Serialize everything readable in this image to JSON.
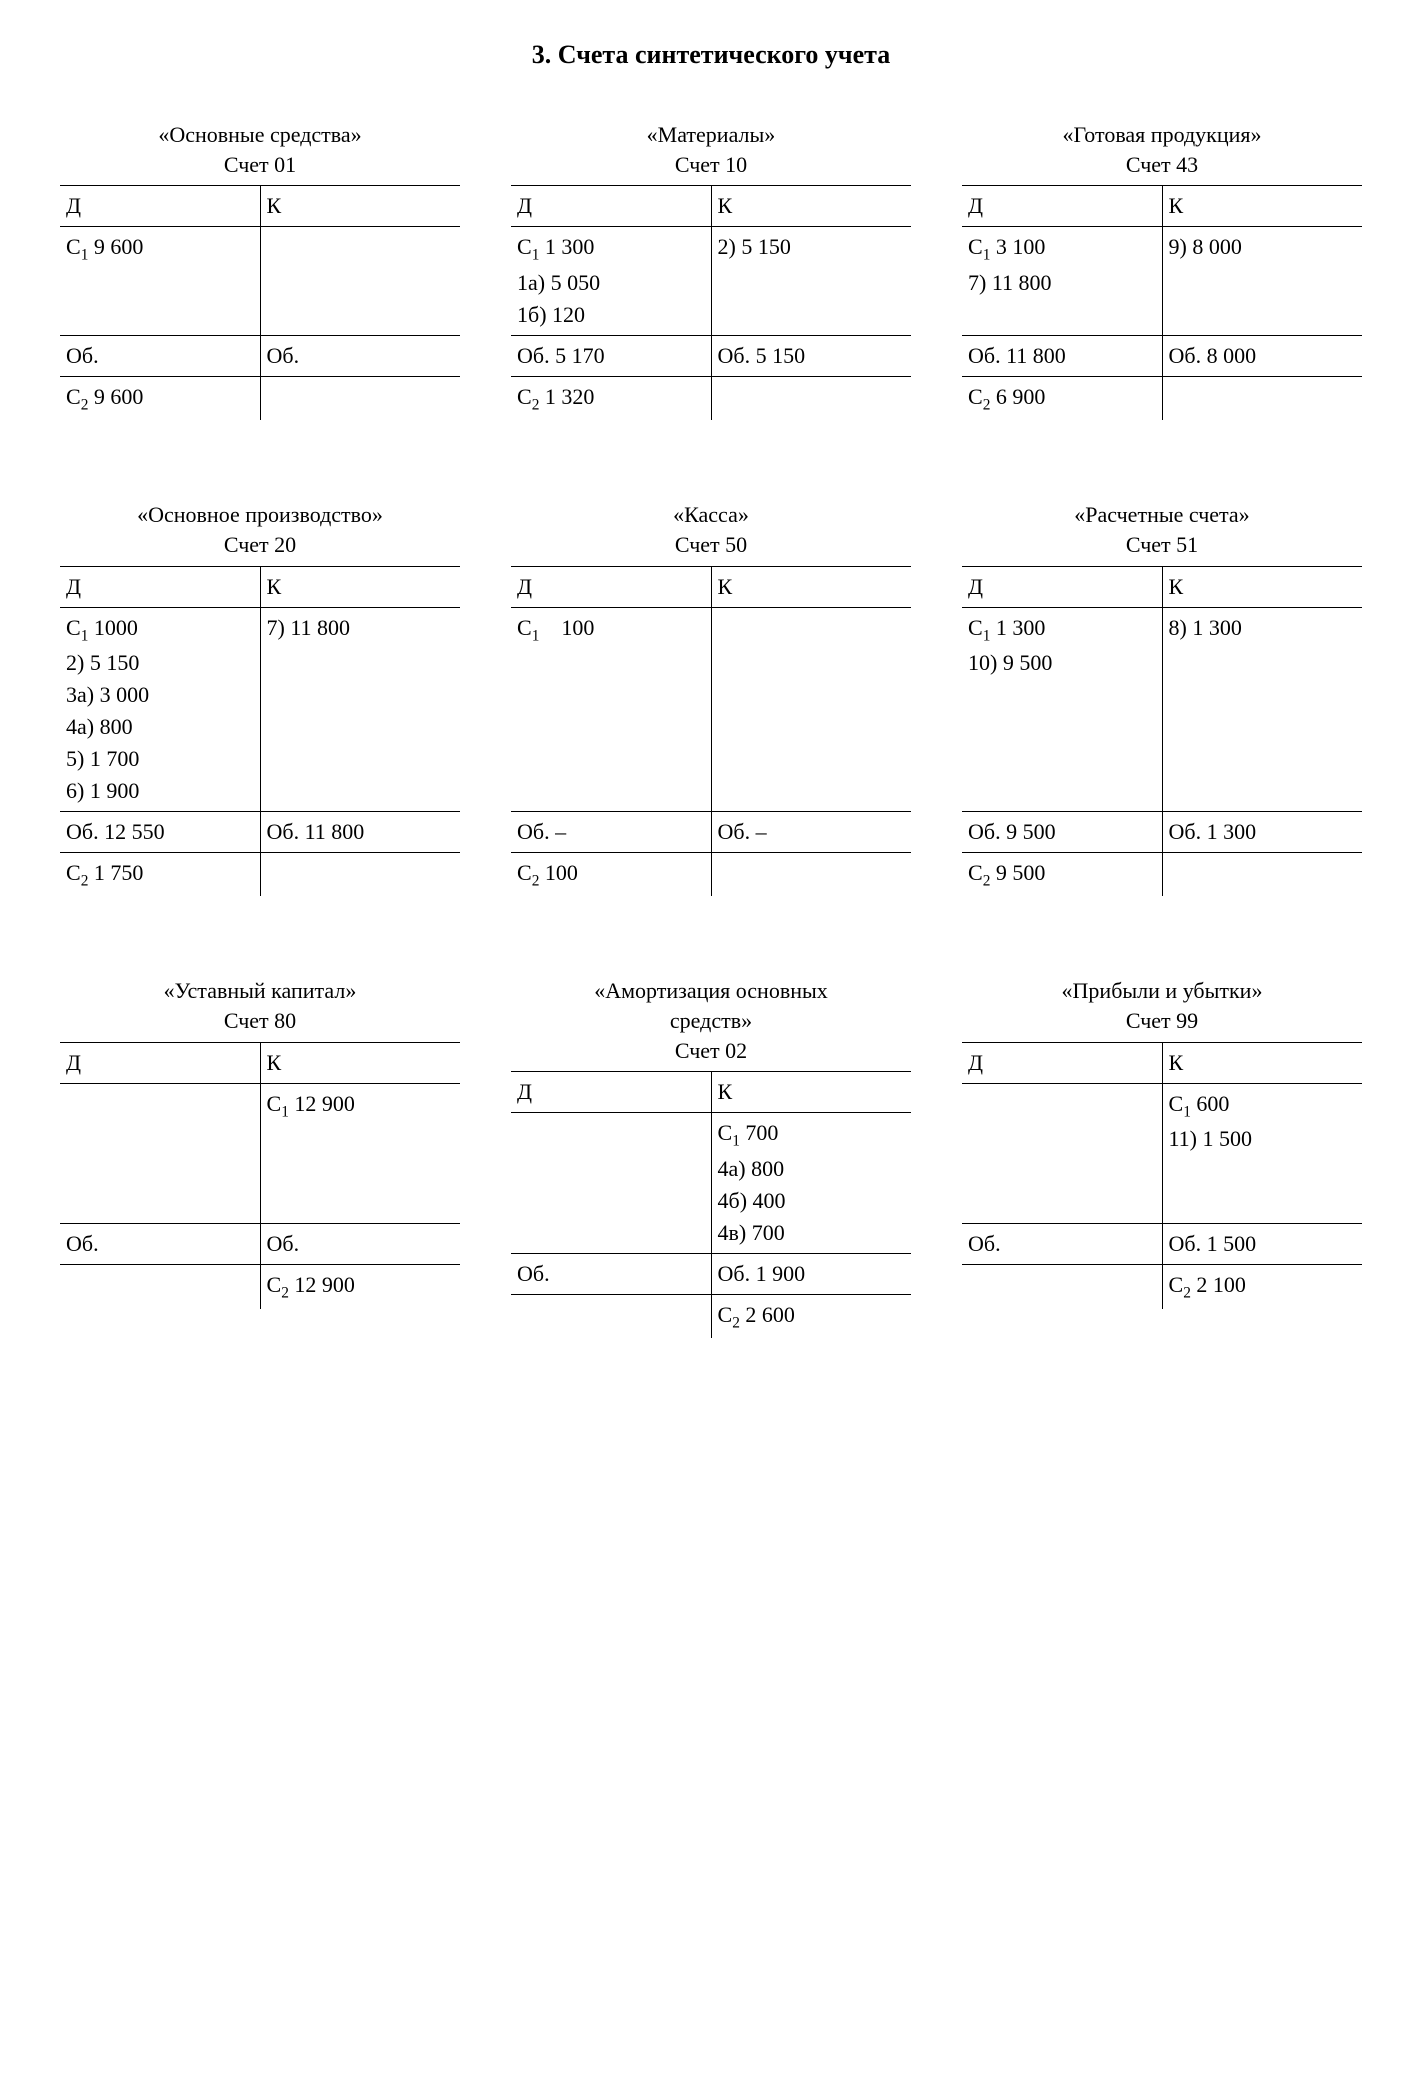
{
  "title": "3. Счета синтетического учета",
  "header": {
    "D": "Д",
    "K": "К"
  },
  "rows": [
    [
      {
        "title_l1": "«Основные средства»",
        "title_l2": "Счет 01",
        "d_lines": [
          "С₁ 9 600"
        ],
        "k_lines": [],
        "ob_d": "Об.",
        "ob_k": "Об.",
        "c2_d": "С₂ 9 600",
        "c2_k": ""
      },
      {
        "title_l1": "«Материалы»",
        "title_l2": "Счет 10",
        "d_lines": [
          "С₁ 1 300",
          "1а) 5 050",
          "1б) 120"
        ],
        "k_lines": [
          "2) 5 150"
        ],
        "ob_d": "Об. 5 170",
        "ob_k": "Об. 5 150",
        "c2_d": "С₂ 1 320",
        "c2_k": ""
      },
      {
        "title_l1": "«Готовая продукция»",
        "title_l2": "Счет 43",
        "d_lines": [
          "С₁ 3 100",
          "7) 11 800"
        ],
        "k_lines": [
          "9) 8 000"
        ],
        "ob_d": "Об. 11 800",
        "ob_k": "Об. 8 000",
        "c2_d": "С₂ 6 900",
        "c2_k": ""
      }
    ],
    [
      {
        "title_l1": "«Основное производство»",
        "title_l2": "Счет 20",
        "d_lines": [
          "С₁ 1000",
          "2) 5 150",
          "3а) 3 000",
          "4а) 800",
          "5) 1 700",
          "6) 1 900"
        ],
        "k_lines": [
          "7) 11 800"
        ],
        "ob_d": "Об. 12 550",
        "ob_k": "Об. 11 800",
        "c2_d": "С₂ 1 750",
        "c2_k": ""
      },
      {
        "title_l1": "«Касса»",
        "title_l2": "Счет 50",
        "d_lines": [
          "С₁ 100"
        ],
        "k_lines": [],
        "ob_d": "Об. –",
        "ob_k": "Об. –",
        "c2_d": "С₂ 100",
        "c2_k": ""
      },
      {
        "title_l1": "«Расчетные счета»",
        "title_l2": "Счет 51",
        "d_lines": [
          "С₁ 1 300",
          "10) 9 500"
        ],
        "k_lines": [
          "8) 1 300"
        ],
        "ob_d": "Об. 9 500",
        "ob_k": "Об. 1 300",
        "c2_d": "С₂ 9 500",
        "c2_k": ""
      }
    ],
    [
      {
        "title_l1": "«Уставный капитал»",
        "title_l2": "Счет 80",
        "d_lines": [],
        "k_lines": [
          "С₁ 12 900"
        ],
        "ob_d": "Об.",
        "ob_k": "Об.",
        "c2_d": "",
        "c2_k": "С₂ 12 900"
      },
      {
        "title_l1": "«Амортизация основных средств»",
        "title_l2": "Счет 02",
        "title_wrap": true,
        "d_lines": [],
        "k_lines": [
          "С₁ 700",
          "4а) 800",
          "4б) 400",
          "4в) 700"
        ],
        "ob_d": "Об.",
        "ob_k": "Об. 1 900",
        "c2_d": "",
        "c2_k": "С₂ 2 600"
      },
      {
        "title_l1": "«Прибыли и убытки»",
        "title_l2": "Счет 99",
        "d_lines": [],
        "k_lines": [
          "С₁ 600",
          "11) 1 500"
        ],
        "ob_d": "Об.",
        "ob_k": "Об. 1 500",
        "c2_d": "",
        "c2_k": "С₂ 2 100"
      }
    ]
  ]
}
